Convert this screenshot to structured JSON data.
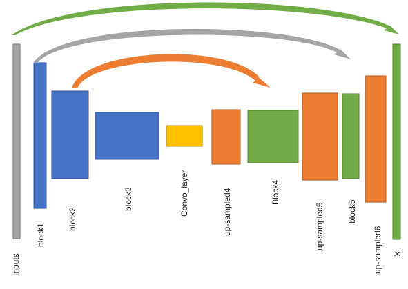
{
  "colors": {
    "gray": "#a5a5a5",
    "gray_stroke": "#7f7f7f",
    "blue": "#4472c4",
    "blue_stroke": "#2f528f",
    "orange": "#ed7d31",
    "orange_stroke": "#ae5a21",
    "yellow": "#ffc000",
    "yellow_stroke": "#bc8c00",
    "green": "#70ad47",
    "green_stroke": "#507e32"
  },
  "blocks": [
    {
      "id": "inputs",
      "label": "Inputs",
      "color": "gray"
    },
    {
      "id": "block1",
      "label": "block1",
      "color": "blue"
    },
    {
      "id": "block2",
      "label": "block2",
      "color": "blue"
    },
    {
      "id": "block3",
      "label": "block3",
      "color": "blue"
    },
    {
      "id": "convo-layer",
      "label": "Convo_layer",
      "color": "yellow"
    },
    {
      "id": "up-sampled4",
      "label": "up-sampled4",
      "color": "orange"
    },
    {
      "id": "block4",
      "label": "Block4",
      "color": "green"
    },
    {
      "id": "up-sampled5",
      "label": "up-sampled5",
      "color": "orange"
    },
    {
      "id": "block5",
      "label": "block5",
      "color": "green"
    },
    {
      "id": "up-sampled6",
      "label": "up-sampled6",
      "color": "orange"
    },
    {
      "id": "x",
      "label": "X",
      "color": "green"
    }
  ],
  "skip_connections": [
    {
      "from": "inputs",
      "to": "x",
      "color": "green"
    },
    {
      "from": "block1",
      "to": "up-sampled5",
      "color": "gray"
    },
    {
      "from": "block2",
      "to": "block4",
      "color": "orange"
    }
  ]
}
